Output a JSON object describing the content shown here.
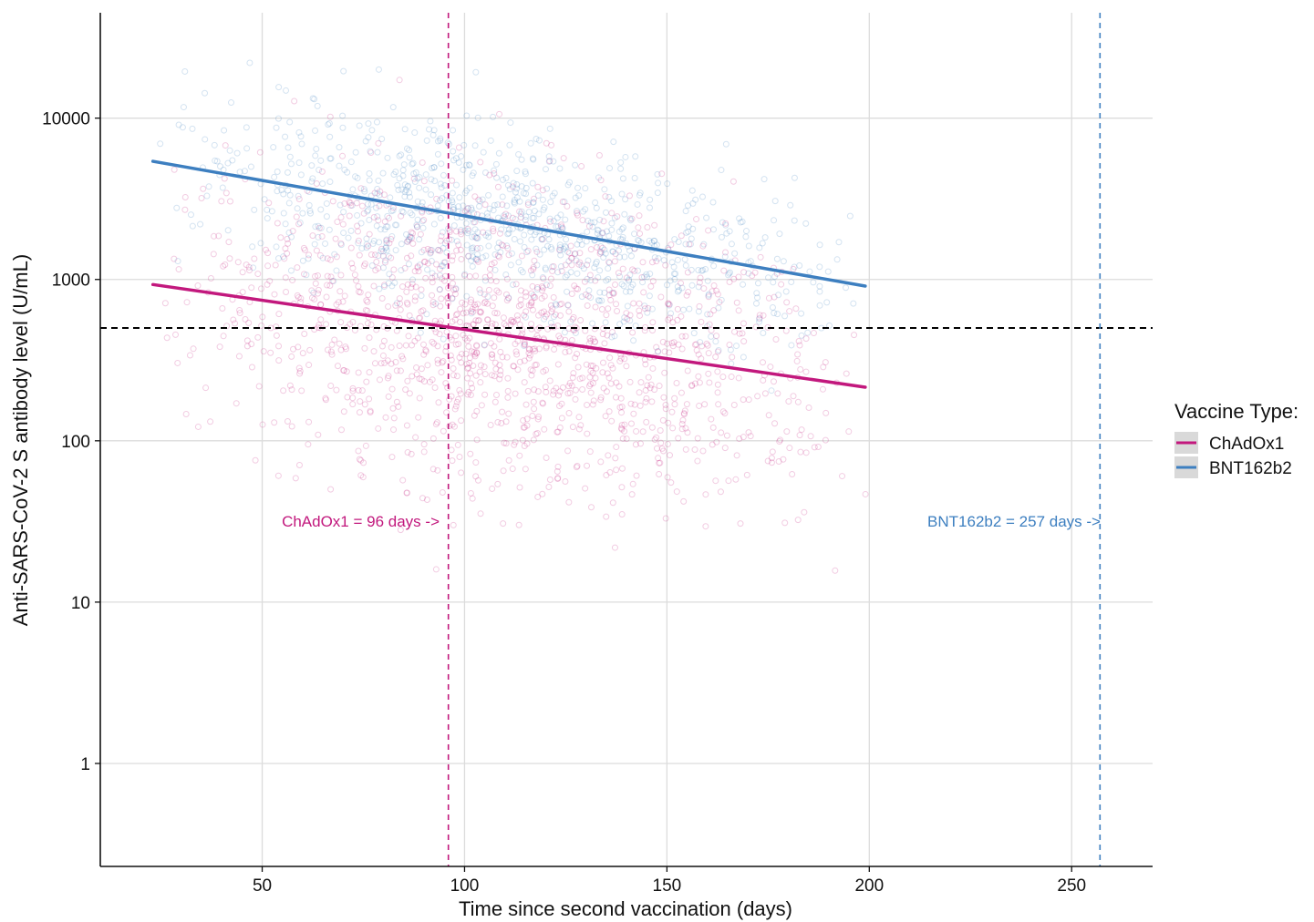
{
  "chart_data": {
    "type": "scatter",
    "xlabel": "Time since second vaccination (days)",
    "ylabel": "Anti-SARS-CoV-2 S antibody level (U/mL)",
    "xlim": [
      10,
      270
    ],
    "ylim": [
      0.23,
      45000
    ],
    "y_scale": "log10",
    "x_ticks": [
      50,
      100,
      150,
      200,
      250
    ],
    "y_ticks": [
      1,
      10,
      100,
      1000,
      10000
    ],
    "x_tick_labels": [
      "50",
      "100",
      "150",
      "200",
      "250"
    ],
    "y_tick_labels": [
      "1",
      "10",
      "100",
      "1000",
      "10000"
    ],
    "grid": true,
    "legend": {
      "title": "Vaccine Type:",
      "placement": "right",
      "entries": [
        "ChAdOx1",
        "BNT162b2"
      ]
    },
    "series": [
      {
        "name": "ChAdOx1",
        "color": "#c2187d",
        "fit_line": {
          "x": [
            23,
            199
          ],
          "y": [
            930,
            215
          ]
        },
        "point_cloud": {
          "x_range": [
            23,
            200
          ],
          "y_center_log10": 2.7,
          "y_spread_log10": 0.75,
          "n": 1400
        }
      },
      {
        "name": "BNT162b2",
        "color": "#3d7fc0",
        "fit_line": {
          "x": [
            23,
            199
          ],
          "y": [
            5400,
            910
          ]
        },
        "point_cloud": {
          "x_range": [
            23,
            200
          ],
          "y_center_log10": 3.45,
          "y_spread_log10": 0.45,
          "n": 900
        }
      }
    ],
    "reference_lines": {
      "horizontal": {
        "y": 500,
        "color": "#000000"
      },
      "vertical": [
        {
          "x": 96,
          "color": "#c2187d",
          "label": "ChAdOx1 = 96 days ->"
        },
        {
          "x": 257,
          "color": "#3d7fc0",
          "label": "BNT162b2 = 257 days ->"
        }
      ]
    }
  }
}
